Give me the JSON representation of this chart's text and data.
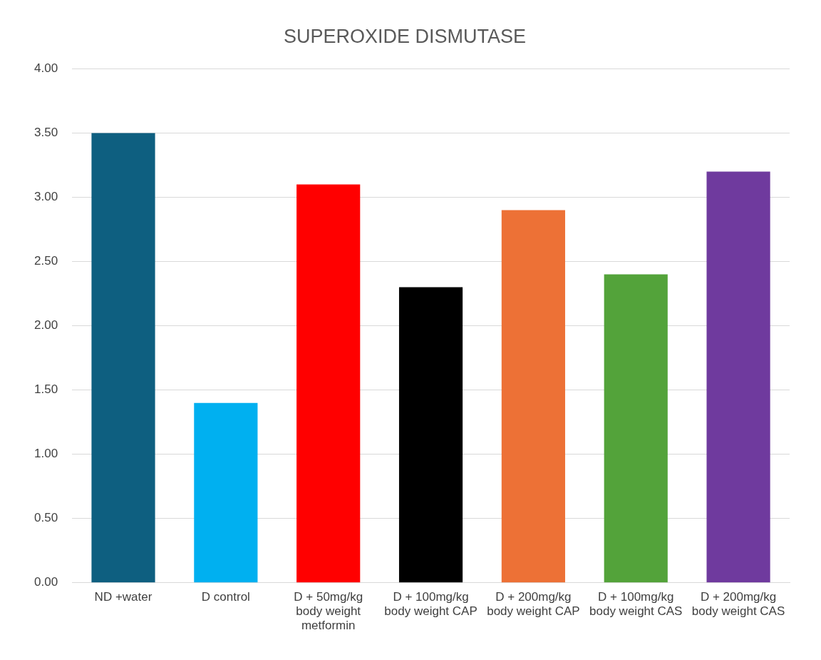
{
  "chart_data": {
    "type": "bar",
    "title": "SUPEROXIDE DISMUTASE",
    "categories": [
      "ND +water",
      "D control",
      "D + 50mg/kg body weight metformin",
      "D + 100mg/kg body weight CAP",
      "D + 200mg/kg body weight CAP",
      "D + 100mg/kg body weight CAS",
      "D + 200mg/kg body weight CAS"
    ],
    "values": [
      3.5,
      1.4,
      3.1,
      2.3,
      2.9,
      2.4,
      3.2
    ],
    "colors": [
      "#0e5f80",
      "#00b0f0",
      "#ff0000",
      "#000000",
      "#ed7136",
      "#53a33a",
      "#6f3a9e"
    ],
    "ylim": [
      0,
      4
    ],
    "yticks": [
      {
        "value": 0,
        "label": "0.00"
      },
      {
        "value": 0.5,
        "label": "0.50"
      },
      {
        "value": 1,
        "label": "1.00"
      },
      {
        "value": 1.5,
        "label": "1.50"
      },
      {
        "value": 2,
        "label": "2.00"
      },
      {
        "value": 2.5,
        "label": "2.50"
      },
      {
        "value": 3,
        "label": "3.00"
      },
      {
        "value": 3.5,
        "label": "3.50"
      },
      {
        "value": 4,
        "label": "4.00"
      }
    ],
    "grid": "y",
    "legend": false
  }
}
